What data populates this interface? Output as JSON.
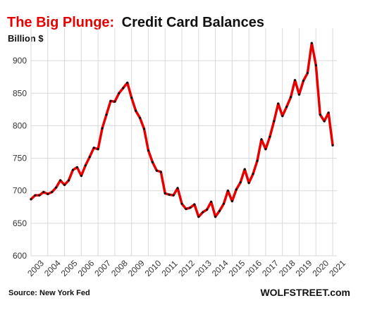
{
  "chart_data": {
    "type": "line",
    "title_part1": "The Big Plunge:",
    "title_part2": "Credit Card Balances",
    "ylabel": "Billion $",
    "source": "Source: New York Fed",
    "brand": "WOLFSTREET.com",
    "ylim": [
      600,
      950
    ],
    "yticks": [
      600,
      650,
      700,
      750,
      800,
      850,
      900
    ],
    "xlim": [
      2003,
      2021.25
    ],
    "xticks": [
      "2003",
      "2004",
      "2005",
      "2006",
      "2007",
      "2008",
      "2009",
      "2010",
      "2011",
      "2012",
      "2013",
      "2014",
      "2015",
      "2016",
      "2017",
      "2018",
      "2019",
      "2020",
      "2021"
    ],
    "grid": true,
    "series": [
      {
        "color": "#e60000",
        "x": [
          2003.0,
          2003.25,
          2003.5,
          2003.75,
          2004.0,
          2004.25,
          2004.5,
          2004.75,
          2005.0,
          2005.25,
          2005.5,
          2005.75,
          2006.0,
          2006.25,
          2006.5,
          2006.75,
          2007.0,
          2007.25,
          2007.5,
          2007.75,
          2008.0,
          2008.25,
          2008.5,
          2008.75,
          2009.0,
          2009.25,
          2009.5,
          2009.75,
          2010.0,
          2010.25,
          2010.5,
          2010.75,
          2011.0,
          2011.25,
          2011.5,
          2011.75,
          2012.0,
          2012.25,
          2012.5,
          2012.75,
          2013.0,
          2013.25,
          2013.5,
          2013.75,
          2014.0,
          2014.25,
          2014.5,
          2014.75,
          2015.0,
          2015.25,
          2015.5,
          2015.75,
          2016.0,
          2016.25,
          2016.5,
          2016.75,
          2017.0,
          2017.25,
          2017.5,
          2017.75,
          2018.0,
          2018.25,
          2018.5,
          2018.75,
          2019.0,
          2019.25,
          2019.5,
          2019.75,
          2020.0,
          2020.25,
          2020.5,
          2020.75,
          2021.0
        ],
        "values": [
          687,
          693,
          693,
          698,
          695,
          698,
          705,
          716,
          709,
          716,
          732,
          736,
          723,
          739,
          752,
          766,
          764,
          796,
          817,
          838,
          837,
          850,
          858,
          866,
          843,
          823,
          812,
          795,
          762,
          744,
          731,
          729,
          696,
          694,
          693,
          704,
          680,
          672,
          674,
          679,
          660,
          667,
          671,
          683,
          660,
          669,
          680,
          700,
          684,
          702,
          713,
          733,
          712,
          726,
          746,
          779,
          764,
          783,
          807,
          834,
          815,
          829,
          844,
          870,
          848,
          869,
          881,
          927,
          893,
          817,
          807,
          820,
          770
        ]
      }
    ]
  }
}
